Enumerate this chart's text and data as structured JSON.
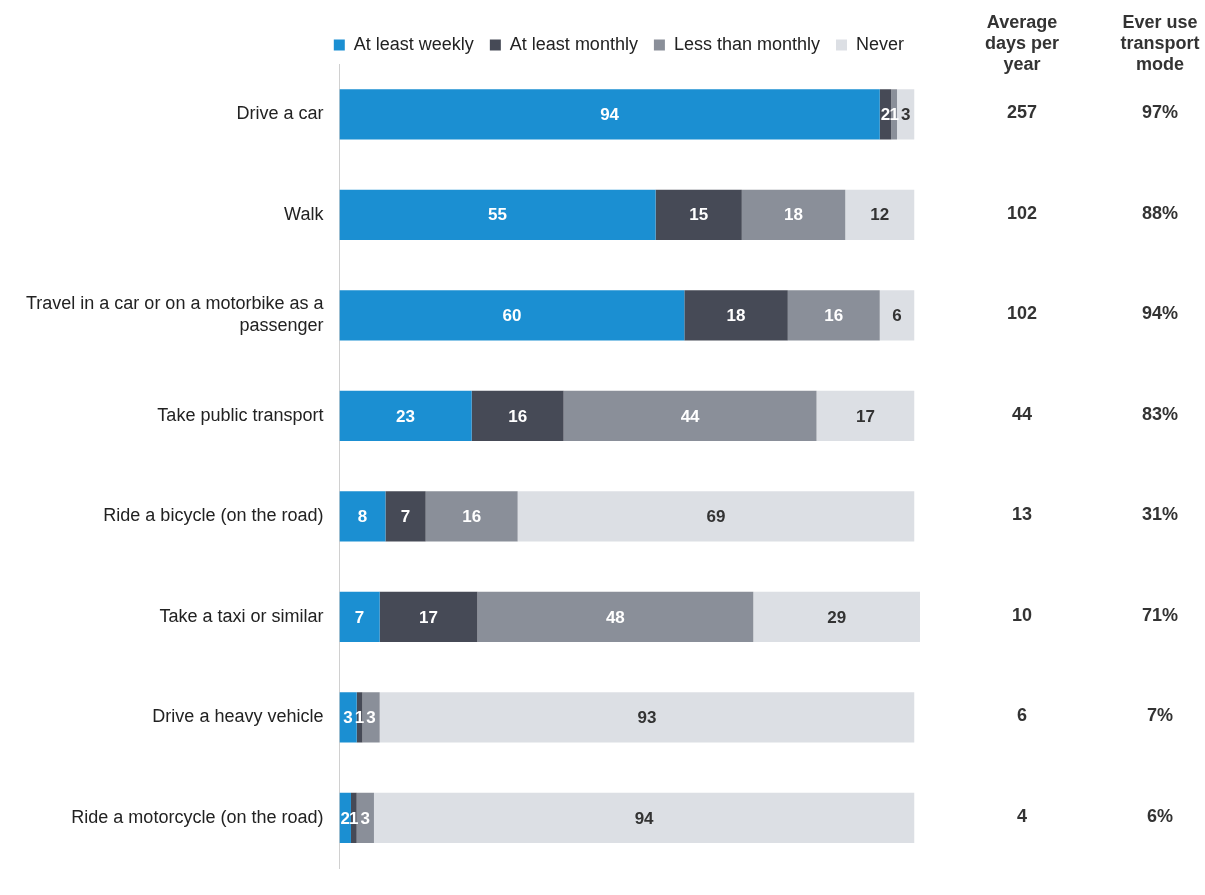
{
  "chart_data": {
    "type": "bar",
    "orientation": "horizontal",
    "stacked": true,
    "data_labels": true,
    "legend": "top",
    "grid": false,
    "tick_labels": "y",
    "categories": [
      "Drive a car",
      "Walk",
      "Travel in a car or on a motorbike as a passenger",
      "Take public transport",
      "Ride a bicycle (on the road)",
      "Take a taxi or similar",
      "Drive a heavy vehicle",
      "Ride a motorcycle (on the road)"
    ],
    "series": [
      {
        "name": "At least weekly",
        "color": "#1b8fd2",
        "values": [
          94,
          55,
          60,
          23,
          8,
          7,
          3,
          2
        ]
      },
      {
        "name": "At least monthly",
        "color": "#464a56",
        "values": [
          2,
          15,
          18,
          16,
          7,
          17,
          1,
          1
        ]
      },
      {
        "name": "Less than monthly",
        "color": "#8a8f99",
        "values": [
          1,
          18,
          16,
          44,
          16,
          48,
          3,
          3
        ]
      },
      {
        "name": "Never",
        "color": "#dcdfe4",
        "values": [
          3,
          12,
          6,
          17,
          69,
          29,
          93,
          94
        ]
      }
    ],
    "annotations": [
      "Average days per year",
      "Ever use transport mode",
      "257",
      "97%",
      "102",
      "88%",
      "102",
      "94%",
      "44",
      "83%",
      "13",
      "31%",
      "10",
      "71%",
      "6",
      "7%",
      "4",
      "6%"
    ]
  }
}
